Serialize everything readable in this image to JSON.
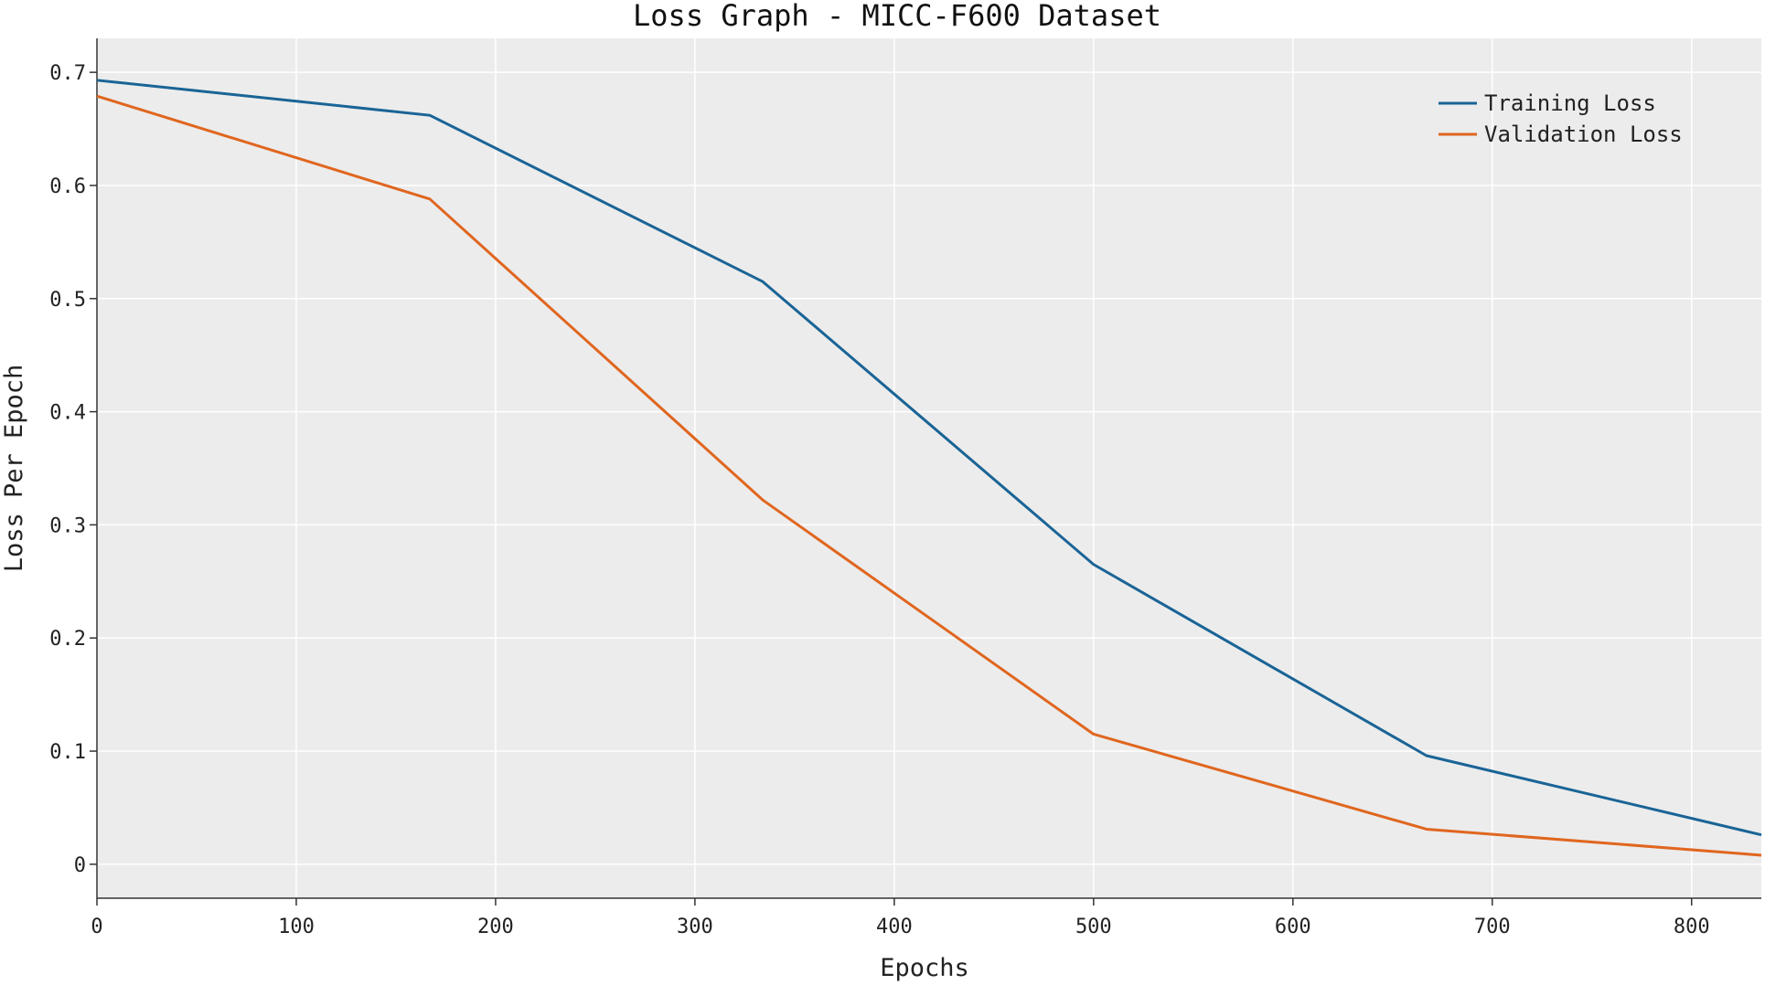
{
  "chart_data": {
    "type": "line",
    "title": "Loss Graph - MICC-F600 Dataset",
    "xlabel": "Epochs",
    "ylabel": "Loss Per Epoch",
    "xlim": [
      0,
      835
    ],
    "ylim": [
      -0.03,
      0.73
    ],
    "xticks": [
      0,
      100,
      200,
      300,
      400,
      500,
      600,
      700,
      800
    ],
    "yticks": [
      0,
      0.1,
      0.2,
      0.3,
      0.4,
      0.5,
      0.6,
      0.7
    ],
    "xtick_labels": [
      "0",
      "100",
      "200",
      "300",
      "400",
      "500",
      "600",
      "700",
      "800"
    ],
    "ytick_labels": [
      "0",
      "0.1",
      "0.2",
      "0.3",
      "0.4",
      "0.5",
      "0.6",
      "0.7"
    ],
    "grid": true,
    "legend_position": "top-right",
    "background": "#ececec",
    "series": [
      {
        "name": "Training Loss",
        "color": "#1a6496",
        "x": [
          0,
          167,
          334,
          500,
          667,
          835
        ],
        "y": [
          0.693,
          0.662,
          0.515,
          0.265,
          0.096,
          0.026
        ]
      },
      {
        "name": "Validation Loss",
        "color": "#e0661f",
        "x": [
          0,
          167,
          334,
          500,
          667,
          835
        ],
        "y": [
          0.679,
          0.588,
          0.322,
          0.115,
          0.031,
          0.008
        ]
      }
    ]
  }
}
